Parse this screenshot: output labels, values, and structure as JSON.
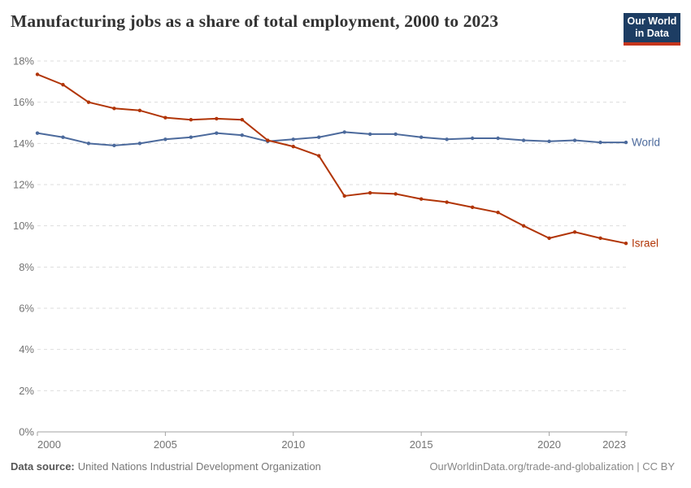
{
  "header": {
    "title": "Manufacturing jobs as a share of total employment, 2000 to 2023",
    "logo_line1": "Our World",
    "logo_line2": "in Data"
  },
  "chart_data": {
    "type": "line",
    "title": "Manufacturing jobs as a share of total employment, 2000 to 2023",
    "x": [
      2000,
      2001,
      2002,
      2003,
      2004,
      2005,
      2006,
      2007,
      2008,
      2009,
      2010,
      2011,
      2012,
      2013,
      2014,
      2015,
      2016,
      2017,
      2018,
      2019,
      2020,
      2021,
      2022,
      2023
    ],
    "series": [
      {
        "name": "World",
        "color": "#4c6a9c",
        "values": [
          14.5,
          14.3,
          14.0,
          13.9,
          14.0,
          14.2,
          14.3,
          14.5,
          14.4,
          14.1,
          14.2,
          14.3,
          14.55,
          14.45,
          14.45,
          14.3,
          14.2,
          14.25,
          14.25,
          14.15,
          14.1,
          14.15,
          14.05,
          14.05
        ]
      },
      {
        "name": "Israel",
        "color": "#b13507",
        "values": [
          17.35,
          16.85,
          16.0,
          15.7,
          15.6,
          15.25,
          15.15,
          15.2,
          15.15,
          14.15,
          13.85,
          13.4,
          11.45,
          11.6,
          11.55,
          11.3,
          11.15,
          10.9,
          10.65,
          10.0,
          9.4,
          9.7,
          9.4,
          9.15
        ]
      }
    ],
    "ylim": [
      0,
      18
    ],
    "ytick_step": 2,
    "ytick_suffix": "%",
    "xticks": [
      2000,
      2005,
      2010,
      2015,
      2020,
      2023
    ],
    "grid": "horizontal-dashed",
    "legend_position": "line-end"
  },
  "footer": {
    "source_label": "Data source:",
    "source_value": "United Nations Industrial Development Organization",
    "attribution": "OurWorldinData.org/trade-and-globalization | CC BY"
  },
  "colors": {
    "grid": "#dddddd",
    "axis": "#a3a3a3",
    "tick_label": "#737373",
    "title": "#333333",
    "logo_bg": "#1d3d63",
    "logo_stripe": "#c5351c"
  }
}
